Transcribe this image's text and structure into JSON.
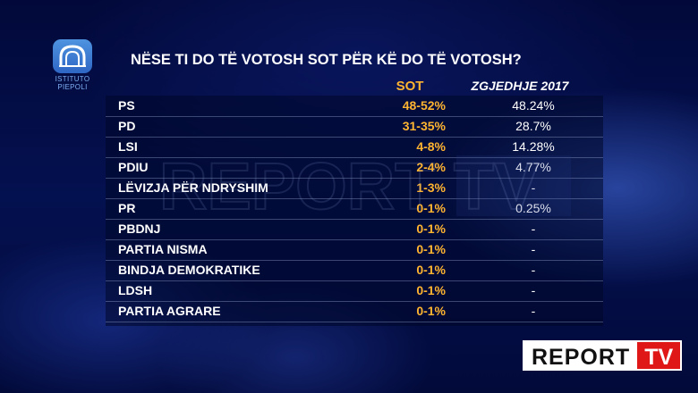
{
  "logo": {
    "line1": "ISTITUTO",
    "line2": "PIEPOLI"
  },
  "title": "NËSE TI DO TË VOTOSH SOT PËR KË DO TË VOTOSH?",
  "columns": {
    "sot": "SOT",
    "zgjedhje": "ZGJEDHJE 2017"
  },
  "rows": [
    {
      "party": "PS",
      "sot": "48-52%",
      "zgjedhje": "48.24%"
    },
    {
      "party": "PD",
      "sot": "31-35%",
      "zgjedhje": "28.7%"
    },
    {
      "party": "LSI",
      "sot": "4-8%",
      "zgjedhje": "14.28%"
    },
    {
      "party": "PDIU",
      "sot": "2-4%",
      "zgjedhje": "4.77%"
    },
    {
      "party": "LËVIZJA PËR NDRYSHIM",
      "sot": "1-3%",
      "zgjedhje": "-"
    },
    {
      "party": "PR",
      "sot": "0-1%",
      "zgjedhje": "0.25%"
    },
    {
      "party": "PBDNJ",
      "sot": "0-1%",
      "zgjedhje": "-"
    },
    {
      "party": "PARTIA NISMA",
      "sot": "0-1%",
      "zgjedhje": "-"
    },
    {
      "party": "BINDJA DEMOKRATIKE",
      "sot": "0-1%",
      "zgjedhje": "-"
    },
    {
      "party": "LDSH",
      "sot": "0-1%",
      "zgjedhje": "-"
    },
    {
      "party": "PARTIA AGRARE",
      "sot": "0-1%",
      "zgjedhje": "-"
    }
  ],
  "watermark": "REPORT TV",
  "brand": {
    "report": "REPORT",
    "tv": "TV"
  },
  "colors": {
    "accent": "#ffb431",
    "brand_red": "#e01717",
    "background": "#041150"
  }
}
